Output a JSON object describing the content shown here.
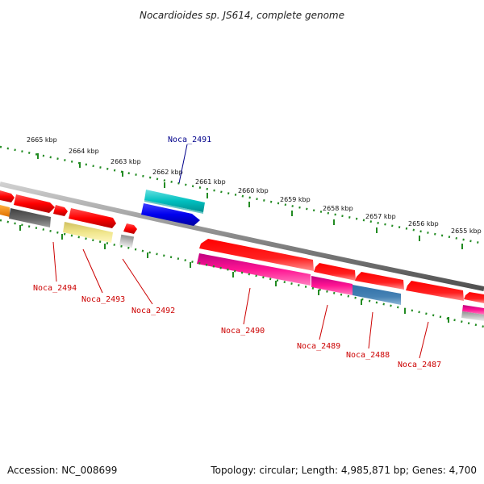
{
  "title": "Nocardioides sp. JS614, complete genome",
  "accession": "Accession: NC_008699",
  "topology": "Topology: circular; Length: 4,985,871 bp; Genes: 4,700",
  "colors": {
    "backbone": "#8c8c8c",
    "tick_outer": "#228b22",
    "tick_inner": "#228b22",
    "label_red": "#cc0000",
    "label_blue": "#00008b"
  },
  "scale_labels": [
    "2665 kbp",
    "2664 kbp",
    "2663 kbp",
    "2662 kbp",
    "2661 kbp",
    "2660 kbp",
    "2659 kbp",
    "2658 kbp",
    "2657 kbp",
    "2656 kbp",
    "2655 kbp"
  ],
  "gene_labels": [
    "Noca_2491",
    "Noca_2494",
    "Noca_2493",
    "Noca_2492",
    "Noca_2490",
    "Noca_2489",
    "Noca_2488",
    "Noca_2487"
  ]
}
